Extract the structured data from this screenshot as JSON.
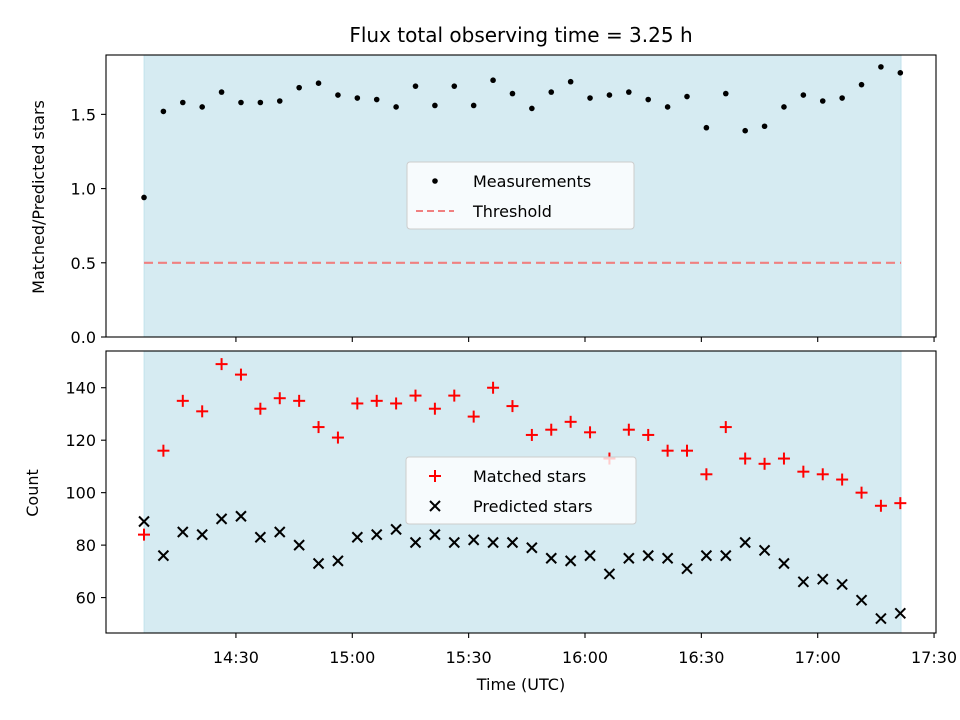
{
  "chart_data": {
    "type": "scatter",
    "title": "Flux total observing time = 3.25 h",
    "xlabel": "Time (UTC)",
    "x_ticks": [
      "14:30",
      "15:00",
      "15:30",
      "16:00",
      "16:30",
      "17:00",
      "17:30"
    ],
    "x_tick_minutes": [
      870,
      900,
      930,
      960,
      990,
      1020,
      1050
    ],
    "x_range_minutes": [
      836.5,
      1050.5
    ],
    "shaded_window_minutes": [
      846.3,
      1041.5
    ],
    "times_minutes": [
      846.3,
      851.3,
      856.3,
      861.3,
      866.3,
      871.3,
      876.3,
      881.3,
      886.3,
      891.3,
      896.3,
      901.3,
      906.3,
      911.3,
      916.3,
      921.3,
      926.3,
      931.3,
      936.3,
      941.3,
      946.3,
      951.3,
      956.3,
      961.3,
      966.3,
      971.3,
      976.3,
      981.3,
      986.3,
      991.3,
      996.3,
      1001.3,
      1006.3,
      1011.3,
      1016.3,
      1021.3,
      1026.3,
      1031.3,
      1036.3,
      1041.3
    ],
    "panels": [
      {
        "name": "ratio",
        "ylabel": "Matched/Predicted stars",
        "ylim": [
          0,
          1.9
        ],
        "y_ticks": [
          0.0,
          0.5,
          1.0,
          1.5
        ],
        "y_tick_labels": [
          "0.0",
          "0.5",
          "1.0",
          "1.5"
        ],
        "series": [
          {
            "name": "Measurements",
            "marker": "dot",
            "color": "#000000",
            "values": [
              0.94,
              1.52,
              1.58,
              1.55,
              1.65,
              1.58,
              1.58,
              1.59,
              1.68,
              1.71,
              1.63,
              1.61,
              1.6,
              1.55,
              1.69,
              1.56,
              1.69,
              1.56,
              1.73,
              1.64,
              1.54,
              1.65,
              1.72,
              1.61,
              1.63,
              1.65,
              1.6,
              1.55,
              1.62,
              1.41,
              1.64,
              1.39,
              1.42,
              1.55,
              1.63,
              1.59,
              1.61,
              1.7,
              1.82,
              1.78
            ]
          }
        ],
        "threshold": {
          "name": "Threshold",
          "value": 0.5,
          "color": "#f08080",
          "style": "dashed"
        },
        "legend_position": "center"
      },
      {
        "name": "counts",
        "ylabel": "Count",
        "ylim": [
          46.5,
          154
        ],
        "y_ticks": [
          60,
          80,
          100,
          120,
          140
        ],
        "y_tick_labels": [
          "60",
          "80",
          "100",
          "120",
          "140"
        ],
        "series": [
          {
            "name": "Matched stars",
            "marker": "plus",
            "color": "#ff0000",
            "values": [
              84,
              116,
              135,
              131,
              149,
              145,
              132,
              136,
              135,
              125,
              121,
              134,
              135,
              134,
              137,
              132,
              137,
              129,
              140,
              133,
              122,
              124,
              127,
              123,
              113,
              124,
              122,
              116,
              116,
              107,
              125,
              113,
              111,
              113,
              108,
              107,
              105,
              100,
              95,
              96
            ]
          },
          {
            "name": "Predicted stars",
            "marker": "x",
            "color": "#000000",
            "values": [
              89,
              76,
              85,
              84,
              90,
              91,
              83,
              85,
              80,
              73,
              74,
              83,
              84,
              86,
              81,
              84,
              81,
              82,
              81,
              81,
              79,
              75,
              74,
              76,
              69,
              75,
              76,
              75,
              71,
              76,
              76,
              81,
              78,
              73,
              66,
              67,
              65,
              59,
              52,
              54
            ]
          }
        ],
        "legend_position": "center"
      }
    ],
    "shade_color": "#add8e6"
  }
}
